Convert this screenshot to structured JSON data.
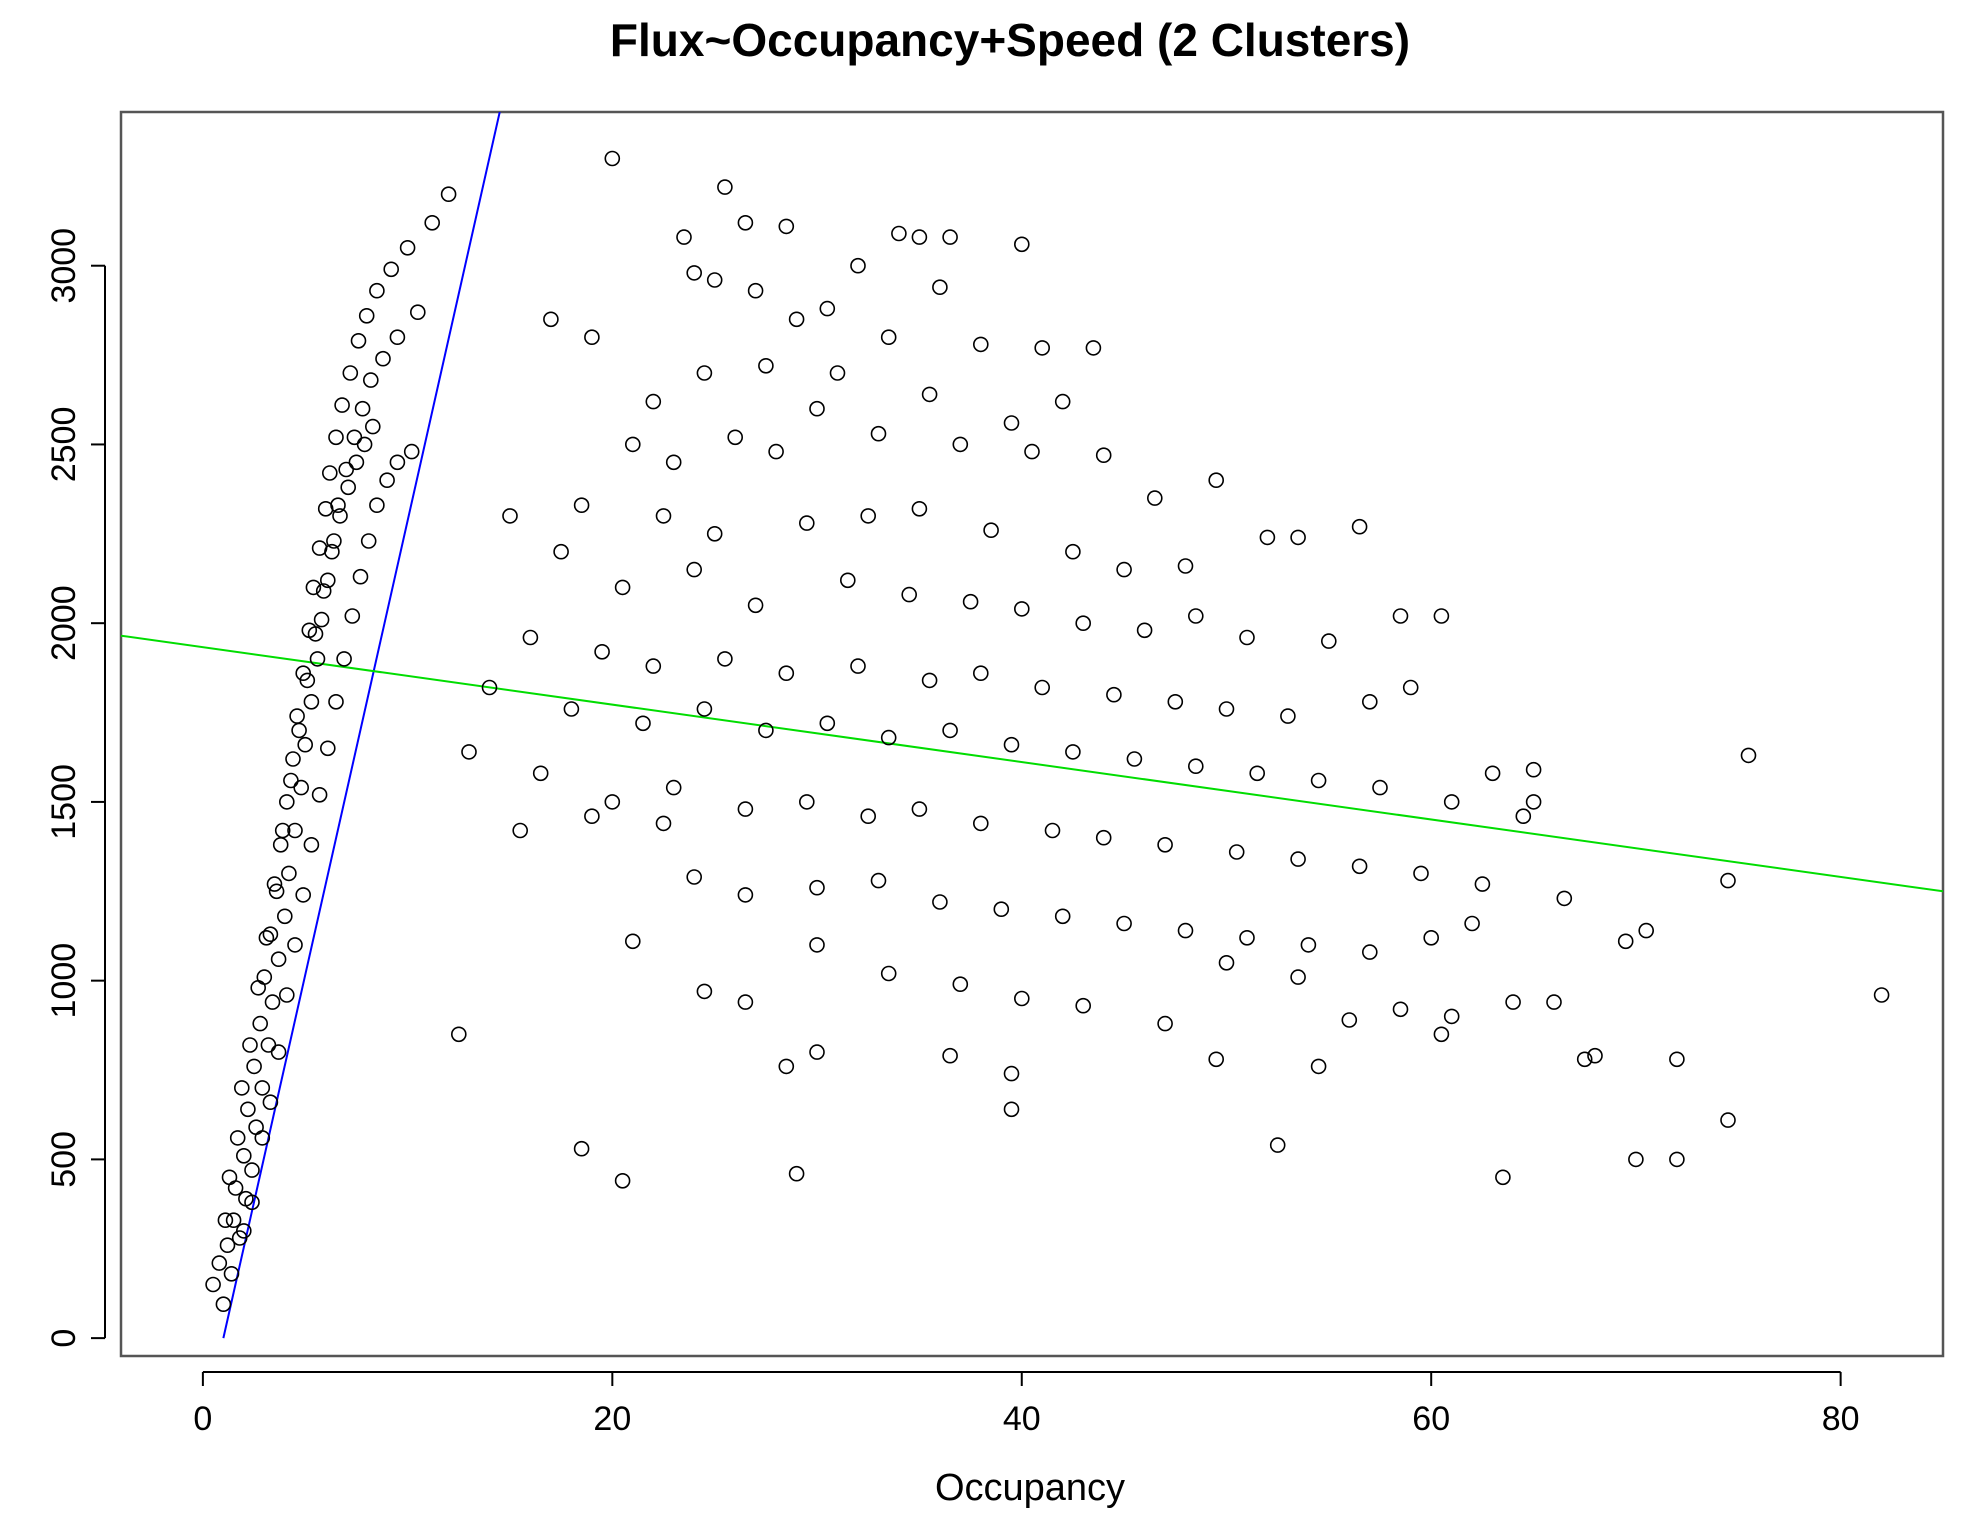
{
  "chart_data": {
    "type": "scatter",
    "title": "Flux~Occupancy+Speed (2 Clusters)",
    "xlabel": "Occupancy",
    "ylabel": "",
    "xlim": [
      -4,
      85
    ],
    "ylim": [
      -50,
      3430
    ],
    "x_ticks": [
      0,
      20,
      40,
      60,
      80
    ],
    "y_ticks": [
      0,
      500,
      1000,
      1500,
      2000,
      2500,
      3000
    ],
    "grid": false,
    "legend": "none",
    "colors": {
      "points": "#000000",
      "cluster_1_line": "#0000ff",
      "cluster_2_line": "#00dd00"
    },
    "fit_lines": [
      {
        "color": "#0000ff",
        "points": [
          [
            1.0,
            0
          ],
          [
            14.5,
            3430
          ]
        ]
      },
      {
        "color": "#00dd00",
        "points": [
          [
            -4,
            1965
          ],
          [
            85,
            1250
          ]
        ]
      }
    ],
    "clusters": [
      {
        "description_color": "#000000",
        "points": [
          [
            0.5,
            150
          ],
          [
            0.8,
            210
          ],
          [
            1.0,
            95
          ],
          [
            1.2,
            260
          ],
          [
            1.4,
            180
          ],
          [
            1.5,
            330
          ],
          [
            1.6,
            420
          ],
          [
            1.8,
            280
          ],
          [
            2.0,
            510
          ],
          [
            2.1,
            390
          ],
          [
            2.2,
            640
          ],
          [
            2.4,
            470
          ],
          [
            2.5,
            760
          ],
          [
            2.6,
            590
          ],
          [
            2.8,
            880
          ],
          [
            2.9,
            700
          ],
          [
            3.0,
            1010
          ],
          [
            3.2,
            820
          ],
          [
            3.3,
            1130
          ],
          [
            3.4,
            940
          ],
          [
            3.6,
            1250
          ],
          [
            3.7,
            1060
          ],
          [
            3.8,
            1380
          ],
          [
            4.0,
            1180
          ],
          [
            4.1,
            1500
          ],
          [
            4.2,
            1300
          ],
          [
            4.4,
            1620
          ],
          [
            4.5,
            1420
          ],
          [
            4.6,
            1740
          ],
          [
            4.8,
            1540
          ],
          [
            4.9,
            1860
          ],
          [
            5.0,
            1660
          ],
          [
            5.2,
            1980
          ],
          [
            5.3,
            1780
          ],
          [
            5.4,
            2100
          ],
          [
            5.6,
            1900
          ],
          [
            5.7,
            2210
          ],
          [
            5.8,
            2010
          ],
          [
            6.0,
            2320
          ],
          [
            6.1,
            2120
          ],
          [
            6.2,
            2420
          ],
          [
            6.4,
            2230
          ],
          [
            6.5,
            2520
          ],
          [
            6.6,
            2330
          ],
          [
            6.8,
            2610
          ],
          [
            7.0,
            2430
          ],
          [
            7.2,
            2700
          ],
          [
            7.4,
            2520
          ],
          [
            7.6,
            2790
          ],
          [
            7.8,
            2600
          ],
          [
            8.0,
            2860
          ],
          [
            8.2,
            2680
          ],
          [
            8.5,
            2930
          ],
          [
            8.8,
            2740
          ],
          [
            9.2,
            2990
          ],
          [
            9.5,
            2800
          ],
          [
            10.0,
            3050
          ],
          [
            10.5,
            2870
          ],
          [
            11.2,
            3120
          ],
          [
            12.0,
            3200
          ],
          [
            1.1,
            330
          ],
          [
            1.3,
            450
          ],
          [
            1.7,
            560
          ],
          [
            1.9,
            700
          ],
          [
            2.3,
            820
          ],
          [
            2.7,
            980
          ],
          [
            3.1,
            1120
          ],
          [
            3.5,
            1270
          ],
          [
            3.9,
            1420
          ],
          [
            4.3,
            1560
          ],
          [
            4.7,
            1700
          ],
          [
            5.1,
            1840
          ],
          [
            5.5,
            1970
          ],
          [
            5.9,
            2090
          ],
          [
            6.3,
            2200
          ],
          [
            6.7,
            2300
          ],
          [
            7.1,
            2380
          ],
          [
            7.5,
            2450
          ],
          [
            7.9,
            2500
          ],
          [
            8.3,
            2550
          ],
          [
            2.0,
            300
          ],
          [
            2.4,
            380
          ],
          [
            2.9,
            560
          ],
          [
            3.3,
            660
          ],
          [
            3.7,
            800
          ],
          [
            4.1,
            960
          ],
          [
            4.5,
            1100
          ],
          [
            4.9,
            1240
          ],
          [
            5.3,
            1380
          ],
          [
            5.7,
            1520
          ],
          [
            6.1,
            1650
          ],
          [
            6.5,
            1780
          ],
          [
            6.9,
            1900
          ],
          [
            7.3,
            2020
          ],
          [
            7.7,
            2130
          ],
          [
            8.1,
            2230
          ],
          [
            8.5,
            2330
          ],
          [
            9.0,
            2400
          ],
          [
            9.5,
            2450
          ],
          [
            10.2,
            2480
          ]
        ]
      },
      {
        "description_color": "#000000",
        "points": [
          [
            20.0,
            3300
          ],
          [
            25.5,
            3220
          ],
          [
            26.5,
            3120
          ],
          [
            28.5,
            3110
          ],
          [
            23.5,
            3080
          ],
          [
            34.0,
            3090
          ],
          [
            35.0,
            3080
          ],
          [
            36.5,
            3080
          ],
          [
            40.0,
            3060
          ],
          [
            24.0,
            2980
          ],
          [
            25.0,
            2960
          ],
          [
            32.0,
            3000
          ],
          [
            27.0,
            2930
          ],
          [
            36.0,
            2940
          ],
          [
            30.5,
            2880
          ],
          [
            29.0,
            2850
          ],
          [
            33.5,
            2800
          ],
          [
            41.0,
            2770
          ],
          [
            43.5,
            2770
          ],
          [
            38.0,
            2780
          ],
          [
            22.0,
            2620
          ],
          [
            19.0,
            2800
          ],
          [
            17.0,
            2850
          ],
          [
            24.5,
            2700
          ],
          [
            27.5,
            2720
          ],
          [
            31.0,
            2700
          ],
          [
            35.5,
            2640
          ],
          [
            42.0,
            2620
          ],
          [
            39.5,
            2560
          ],
          [
            30.0,
            2600
          ],
          [
            21.0,
            2500
          ],
          [
            23.0,
            2450
          ],
          [
            26.0,
            2520
          ],
          [
            28.0,
            2480
          ],
          [
            33.0,
            2530
          ],
          [
            37.0,
            2500
          ],
          [
            40.5,
            2480
          ],
          [
            44.0,
            2470
          ],
          [
            46.5,
            2350
          ],
          [
            49.5,
            2400
          ],
          [
            18.5,
            2330
          ],
          [
            22.5,
            2300
          ],
          [
            25.0,
            2250
          ],
          [
            29.5,
            2280
          ],
          [
            32.5,
            2300
          ],
          [
            35.0,
            2320
          ],
          [
            38.5,
            2260
          ],
          [
            42.5,
            2200
          ],
          [
            45.0,
            2150
          ],
          [
            48.0,
            2160
          ],
          [
            52.0,
            2240
          ],
          [
            56.5,
            2270
          ],
          [
            53.5,
            2240
          ],
          [
            15.0,
            2300
          ],
          [
            17.5,
            2200
          ],
          [
            20.5,
            2100
          ],
          [
            24.0,
            2150
          ],
          [
            27.0,
            2050
          ],
          [
            31.5,
            2120
          ],
          [
            34.5,
            2080
          ],
          [
            37.5,
            2060
          ],
          [
            40.0,
            2040
          ],
          [
            43.0,
            2000
          ],
          [
            46.0,
            1980
          ],
          [
            48.5,
            2020
          ],
          [
            51.0,
            1960
          ],
          [
            55.0,
            1950
          ],
          [
            58.5,
            2020
          ],
          [
            60.5,
            2020
          ],
          [
            16.0,
            1960
          ],
          [
            19.5,
            1920
          ],
          [
            22.0,
            1880
          ],
          [
            25.5,
            1900
          ],
          [
            28.5,
            1860
          ],
          [
            32.0,
            1880
          ],
          [
            35.5,
            1840
          ],
          [
            38.0,
            1860
          ],
          [
            41.0,
            1820
          ],
          [
            44.5,
            1800
          ],
          [
            47.5,
            1780
          ],
          [
            50.0,
            1760
          ],
          [
            53.0,
            1740
          ],
          [
            57.0,
            1780
          ],
          [
            59.0,
            1820
          ],
          [
            14.0,
            1820
          ],
          [
            18.0,
            1760
          ],
          [
            21.5,
            1720
          ],
          [
            24.5,
            1760
          ],
          [
            27.5,
            1700
          ],
          [
            30.5,
            1720
          ],
          [
            33.5,
            1680
          ],
          [
            36.5,
            1700
          ],
          [
            39.5,
            1660
          ],
          [
            42.5,
            1640
          ],
          [
            45.5,
            1620
          ],
          [
            48.5,
            1600
          ],
          [
            51.5,
            1580
          ],
          [
            54.5,
            1560
          ],
          [
            57.5,
            1540
          ],
          [
            61.0,
            1500
          ],
          [
            13.0,
            1640
          ],
          [
            16.5,
            1580
          ],
          [
            20.0,
            1500
          ],
          [
            23.0,
            1540
          ],
          [
            26.5,
            1480
          ],
          [
            29.5,
            1500
          ],
          [
            32.5,
            1460
          ],
          [
            35.0,
            1480
          ],
          [
            38.0,
            1440
          ],
          [
            41.5,
            1420
          ],
          [
            44.0,
            1400
          ],
          [
            47.0,
            1380
          ],
          [
            50.5,
            1360
          ],
          [
            53.5,
            1340
          ],
          [
            56.5,
            1320
          ],
          [
            59.5,
            1300
          ],
          [
            62.5,
            1270
          ],
          [
            65.0,
            1500
          ],
          [
            63.0,
            1580
          ],
          [
            64.5,
            1460
          ],
          [
            15.5,
            1420
          ],
          [
            19.0,
            1460
          ],
          [
            22.5,
            1440
          ],
          [
            24.0,
            1290
          ],
          [
            26.5,
            1240
          ],
          [
            30.0,
            1260
          ],
          [
            33.0,
            1280
          ],
          [
            36.0,
            1220
          ],
          [
            39.0,
            1200
          ],
          [
            42.0,
            1180
          ],
          [
            45.0,
            1160
          ],
          [
            48.0,
            1140
          ],
          [
            51.0,
            1120
          ],
          [
            54.0,
            1100
          ],
          [
            57.0,
            1080
          ],
          [
            60.0,
            1120
          ],
          [
            62.0,
            1160
          ],
          [
            66.5,
            1230
          ],
          [
            70.5,
            1140
          ],
          [
            69.5,
            1110
          ],
          [
            21.0,
            1110
          ],
          [
            24.5,
            970
          ],
          [
            26.5,
            940
          ],
          [
            30.0,
            1100
          ],
          [
            33.5,
            1020
          ],
          [
            37.0,
            990
          ],
          [
            40.0,
            950
          ],
          [
            43.0,
            930
          ],
          [
            47.0,
            880
          ],
          [
            50.0,
            1050
          ],
          [
            53.5,
            1010
          ],
          [
            56.0,
            890
          ],
          [
            58.5,
            920
          ],
          [
            61.0,
            900
          ],
          [
            64.0,
            940
          ],
          [
            66.0,
            940
          ],
          [
            67.5,
            780
          ],
          [
            68.0,
            790
          ],
          [
            72.0,
            780
          ],
          [
            74.5,
            1280
          ],
          [
            82.0,
            960
          ],
          [
            75.5,
            1630
          ],
          [
            12.5,
            850
          ],
          [
            18.5,
            530
          ],
          [
            20.5,
            440
          ],
          [
            29.0,
            460
          ],
          [
            28.5,
            760
          ],
          [
            30.0,
            800
          ],
          [
            36.5,
            790
          ],
          [
            39.5,
            740
          ],
          [
            39.5,
            640
          ],
          [
            49.5,
            780
          ],
          [
            52.5,
            540
          ],
          [
            54.5,
            760
          ],
          [
            60.5,
            850
          ],
          [
            63.5,
            450
          ],
          [
            70.0,
            500
          ],
          [
            72.0,
            500
          ],
          [
            74.5,
            610
          ],
          [
            65.0,
            1590
          ]
        ]
      }
    ]
  }
}
